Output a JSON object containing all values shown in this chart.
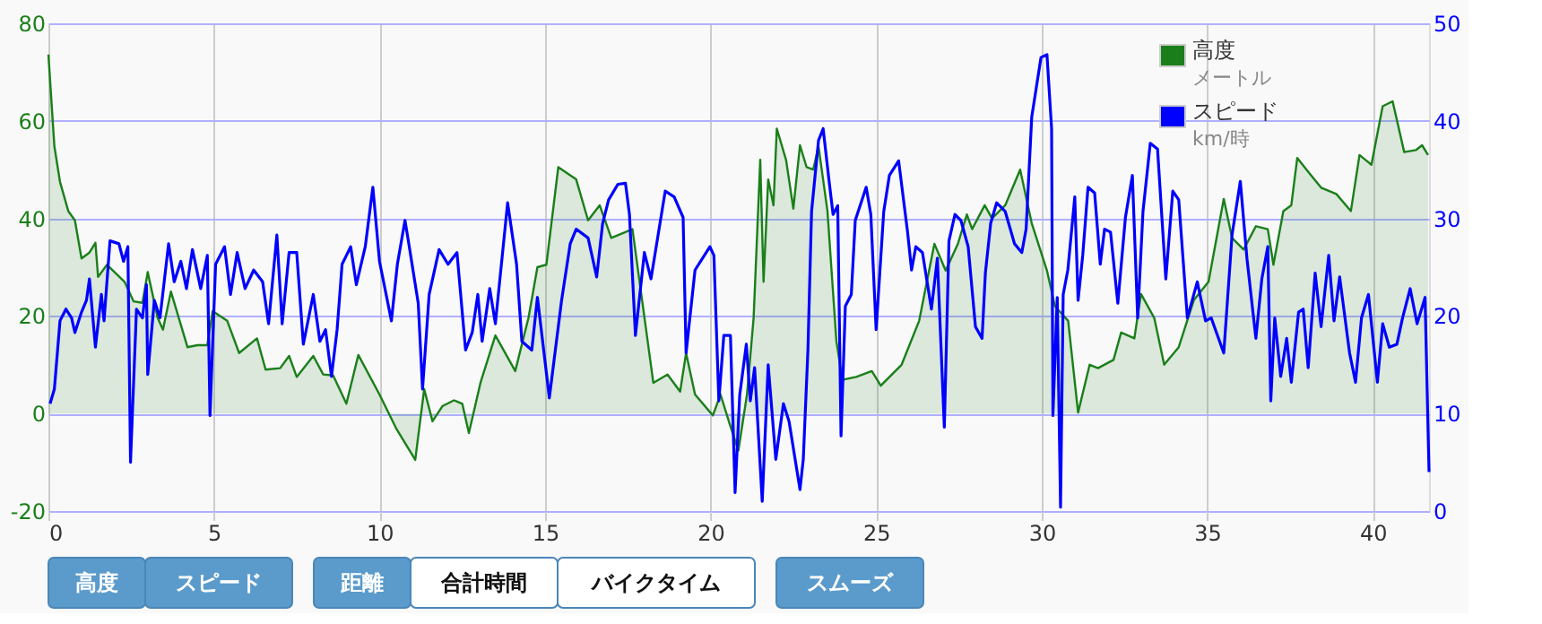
{
  "chart_data": {
    "type": "line",
    "xlim": [
      0,
      41.7
    ],
    "xticks": [
      0,
      5,
      10,
      15,
      20,
      25,
      30,
      35,
      40
    ],
    "ylim": [
      -20,
      80
    ],
    "yticks": [
      -20,
      0,
      20,
      40,
      60,
      80
    ],
    "y2lim": [
      0,
      50
    ],
    "y2ticks": [
      0,
      10,
      20,
      30,
      40,
      50
    ],
    "grid": true,
    "legend": "top right",
    "annotations": [
      "メートル",
      "km/時",
      "高度",
      "スピード",
      "距離",
      "合計時間",
      "バイクタイム",
      "スムーズ"
    ],
    "series": [
      {
        "name": "高度",
        "type": "area",
        "color": "#1a7f1a",
        "x": [
          0,
          0.18,
          0.35,
          0.6,
          0.8,
          1.0,
          1.24,
          1.42,
          1.5,
          1.77,
          2.3,
          2.57,
          2.84,
          3.0,
          3.3,
          3.46,
          3.7,
          4.2,
          4.5,
          4.8,
          4.96,
          5.4,
          5.76,
          6.3,
          6.56,
          7.0,
          7.27,
          7.5,
          8.0,
          8.3,
          8.6,
          9.0,
          9.36,
          10.0,
          10.5,
          11.08,
          11.35,
          11.6,
          11.9,
          12.25,
          12.5,
          12.7,
          13.05,
          13.5,
          14.1,
          14.5,
          14.77,
          15.04,
          15.4,
          15.94,
          16.3,
          16.65,
          17.0,
          17.64,
          18.27,
          18.7,
          19.08,
          19.26,
          19.53,
          20.07,
          20.3,
          20.57,
          20.84,
          21.1,
          21.3,
          21.5,
          21.6,
          21.74,
          21.9,
          22.0,
          22.28,
          22.5,
          22.7,
          22.9,
          23.1,
          23.26,
          23.53,
          23.8,
          23.98,
          24.4,
          24.87,
          25.14,
          25.77,
          26.3,
          26.76,
          27.1,
          27.47,
          27.74,
          27.9,
          28.28,
          28.5,
          28.9,
          29.35,
          29.7,
          30.16,
          30.4,
          30.8,
          31.1,
          31.45,
          31.7,
          32.17,
          32.4,
          32.8,
          33.0,
          33.4,
          33.7,
          34.14,
          34.6,
          35.04,
          35.5,
          35.75,
          36.1,
          36.47,
          36.83,
          37.0,
          37.3,
          37.54,
          37.72,
          38.08,
          38.44,
          38.9,
          39.34,
          39.6,
          39.96,
          40.3,
          40.6,
          40.95,
          41.3,
          41.49,
          41.67
        ],
        "values": [
          73.6,
          54.8,
          47.5,
          41.5,
          39.6,
          31.8,
          33,
          35,
          28,
          30.5,
          27,
          23,
          22.7,
          29,
          19.6,
          17.2,
          25,
          13.6,
          14,
          14,
          21,
          19,
          12.4,
          15.4,
          9,
          9.3,
          11.8,
          7.5,
          11.8,
          8,
          7.8,
          2,
          12,
          3.9,
          -3,
          -9.5,
          5,
          -1.6,
          1.5,
          2.7,
          2,
          -4,
          6.3,
          16,
          8.7,
          19.6,
          30,
          30.5,
          50.5,
          48,
          39.6,
          42.7,
          36,
          37.8,
          6.3,
          8,
          4.5,
          12.4,
          3.9,
          -0.4,
          3.9,
          -2,
          -7.6,
          3.9,
          19.6,
          52,
          27,
          48,
          42.7,
          58.4,
          52,
          42,
          55,
          50.5,
          50,
          54.8,
          41.5,
          14.8,
          6.9,
          7.5,
          8.7,
          5.7,
          10,
          19,
          34.8,
          29.3,
          34.8,
          40.8,
          37.8,
          42.7,
          40,
          42.7,
          50,
          39,
          29.3,
          22,
          19,
          0.2,
          10,
          9.3,
          11,
          16.6,
          15.4,
          24.5,
          19.6,
          10,
          13.6,
          23.3,
          27,
          44,
          36,
          33.6,
          38.4,
          37.8,
          30.5,
          41.5,
          42.7,
          52.4,
          49.3,
          46.3,
          45,
          41.5,
          53,
          51,
          63,
          64,
          53.6,
          54,
          55,
          53
        ]
      },
      {
        "name": "スピード",
        "axis": "y2",
        "color": "#0000ff",
        "x": [
          0.05,
          0.18,
          0.35,
          0.53,
          0.7,
          0.8,
          1.0,
          1.15,
          1.24,
          1.42,
          1.6,
          1.68,
          1.86,
          2.13,
          2.27,
          2.4,
          2.48,
          2.66,
          2.84,
          2.96,
          3.0,
          3.2,
          3.37,
          3.63,
          3.8,
          4.0,
          4.17,
          4.35,
          4.6,
          4.8,
          4.88,
          5.05,
          5.32,
          5.5,
          5.7,
          5.94,
          6.2,
          6.47,
          6.65,
          6.9,
          7.06,
          7.27,
          7.5,
          7.7,
          8.0,
          8.2,
          8.37,
          8.55,
          8.72,
          8.87,
          9.13,
          9.3,
          9.57,
          9.8,
          10.0,
          10.36,
          10.54,
          10.77,
          10.9,
          11.17,
          11.3,
          11.5,
          11.8,
          12.07,
          12.34,
          12.6,
          12.8,
          12.97,
          13.1,
          13.33,
          13.5,
          13.87,
          14.14,
          14.3,
          14.6,
          14.77,
          15.13,
          15.5,
          15.76,
          15.94,
          16.3,
          16.56,
          16.74,
          16.92,
          17.2,
          17.43,
          17.55,
          17.73,
          18.0,
          18.2,
          18.63,
          18.9,
          19.17,
          19.26,
          19.53,
          19.98,
          20.1,
          20.25,
          20.4,
          20.6,
          20.74,
          20.88,
          21.08,
          21.2,
          21.33,
          21.56,
          21.74,
          21.97,
          22.2,
          22.37,
          22.7,
          22.8,
          22.94,
          23.05,
          23.26,
          23.4,
          23.58,
          23.7,
          23.84,
          23.94,
          24.07,
          24.25,
          24.37,
          24.7,
          24.84,
          25.0,
          25.23,
          25.4,
          25.68,
          25.95,
          26.07,
          26.2,
          26.4,
          26.67,
          26.85,
          27.06,
          27.2,
          27.38,
          27.56,
          27.78,
          28.0,
          28.2,
          28.3,
          28.46,
          28.64,
          28.9,
          29.18,
          29.4,
          29.53,
          29.7,
          29.98,
          30.16,
          30.3,
          30.34,
          30.47,
          30.57,
          30.65,
          30.79,
          31.0,
          31.1,
          31.24,
          31.4,
          31.6,
          31.77,
          31.9,
          32.08,
          32.3,
          32.53,
          32.74,
          32.9,
          33.06,
          33.28,
          33.5,
          33.75,
          33.96,
          34.14,
          34.4,
          34.7,
          34.95,
          35.12,
          35.5,
          35.75,
          36.0,
          36.2,
          36.47,
          36.65,
          36.83,
          36.92,
          37.04,
          37.22,
          37.4,
          37.54,
          37.76,
          37.9,
          38.05,
          38.26,
          38.44,
          38.67,
          38.83,
          39.0,
          39.3,
          39.48,
          39.66,
          39.87,
          40.14,
          40.3,
          40.5,
          40.73,
          40.9,
          41.13,
          41.34,
          41.58,
          41.7
        ],
        "values": [
          11,
          12.5,
          19.5,
          20.7,
          19.8,
          18.3,
          20.4,
          21.6,
          23.8,
          16.8,
          22.2,
          19.5,
          27.7,
          27.4,
          25.6,
          27.1,
          5,
          20.7,
          19.8,
          23.2,
          14,
          21.6,
          19.8,
          27.4,
          23.5,
          25.6,
          22.8,
          26.8,
          22.8,
          26.2,
          9.8,
          25.3,
          27.1,
          22.2,
          26.5,
          22.8,
          24.7,
          23.5,
          19.2,
          28.3,
          19.2,
          26.5,
          26.5,
          17.1,
          22.2,
          17.4,
          18.6,
          13.8,
          18.6,
          25.3,
          27.1,
          23.2,
          27.1,
          33.2,
          25.6,
          19.5,
          25.3,
          29.8,
          27.1,
          21.3,
          12.5,
          22.2,
          26.8,
          25.3,
          26.5,
          16.5,
          18.3,
          22.2,
          17.4,
          22.8,
          19.2,
          31.6,
          25.3,
          17.4,
          16.5,
          21.9,
          11.6,
          21.6,
          27.4,
          28.9,
          28,
          24,
          29.5,
          31.9,
          33.5,
          33.6,
          30.4,
          18,
          26.5,
          23.8,
          32.8,
          32.2,
          30.1,
          16.2,
          24.7,
          27.1,
          26.2,
          11.3,
          18,
          18,
          1.9,
          11.9,
          17.1,
          11.3,
          14.7,
          1,
          15,
          5.3,
          11,
          9.2,
          2.2,
          5.3,
          16.5,
          30.7,
          38,
          39.2,
          33.8,
          30.4,
          31.3,
          7.7,
          21,
          22.2,
          29.8,
          33.2,
          30.4,
          18.6,
          30.7,
          34.4,
          35.9,
          28.6,
          24.7,
          27.1,
          26.5,
          20.7,
          25.9,
          8.6,
          27.7,
          30.4,
          29.8,
          27.1,
          18.9,
          17.7,
          24.4,
          29.5,
          31.6,
          30.7,
          27.4,
          26.5,
          28.9,
          40.4,
          46.5,
          46.8,
          39.2,
          9.8,
          21.9,
          0.4,
          22.2,
          24.7,
          32.2,
          21.6,
          26.2,
          33.2,
          32.6,
          25.3,
          28.9,
          28.6,
          21.3,
          30.1,
          34.4,
          19.8,
          30.7,
          37.7,
          37.1,
          23.8,
          32.8,
          31.9,
          19.8,
          23.5,
          19.5,
          19.8,
          16.2,
          28.3,
          33.8,
          25.9,
          17.7,
          23.8,
          27.1,
          11.3,
          19.8,
          13.8,
          17.7,
          13.2,
          20.4,
          20.7,
          14.7,
          24.4,
          18.9,
          26.2,
          19.5,
          24,
          16.2,
          13.2,
          19.8,
          22.2,
          13.2,
          19.2,
          16.8,
          17.1,
          19.8,
          22.8,
          19.2,
          21.9,
          4
        ]
      }
    ]
  }
}
